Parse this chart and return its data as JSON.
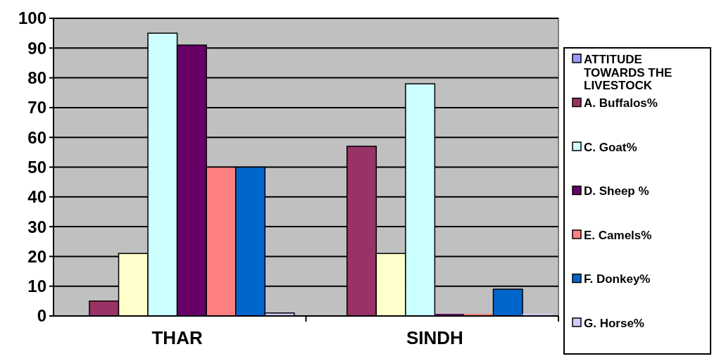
{
  "chart_data": {
    "type": "bar",
    "categories": [
      "THAR",
      "SINDH"
    ],
    "series": [
      {
        "name": "ATTITUDE TOWARDS THE LIVESTOCK",
        "color": "#9999ff",
        "values": [
          null,
          null
        ]
      },
      {
        "name": "A. Buffalos%",
        "color": "#993366",
        "values": [
          5,
          57
        ]
      },
      {
        "color": "#ffffcc",
        "values": [
          21,
          21
        ]
      },
      {
        "name": "C. Goat%",
        "color": "#ccffff",
        "values": [
          95,
          78
        ]
      },
      {
        "name": "D. Sheep %",
        "color": "#660066",
        "values": [
          91,
          0
        ]
      },
      {
        "name": "E. Camels%",
        "color": "#ff8080",
        "values": [
          50,
          0
        ]
      },
      {
        "name": "F. Donkey%",
        "color": "#0066cc",
        "values": [
          50,
          9
        ]
      },
      {
        "name": "G. Horse%",
        "color": "#ccccff",
        "values": [
          1,
          0
        ]
      }
    ],
    "ylim": [
      0,
      100
    ],
    "yticks": [
      0,
      10,
      20,
      30,
      40,
      50,
      60,
      70,
      80,
      90,
      100
    ],
    "grid": "y",
    "legend": "right"
  }
}
